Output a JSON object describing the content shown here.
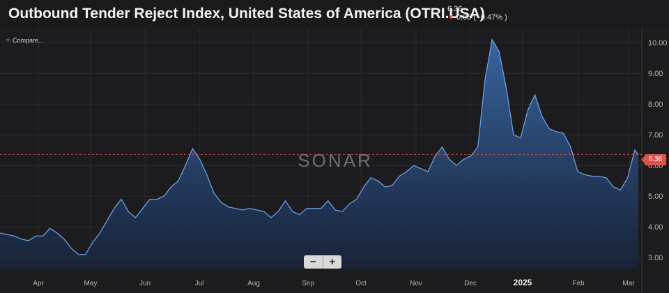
{
  "header": {
    "title": "Outbound Tender Reject Index, United States of America (OTRI.USA)",
    "last_value": "6.36",
    "change": "0.03 ( -0.47% )",
    "change_arrow": "arrow-down-icon"
  },
  "toolbar": {
    "compare_label": "Compare..."
  },
  "watermark": "SONAR",
  "zoom": {
    "minus_label": "−",
    "plus_label": "+"
  },
  "colors": {
    "background": "#1c1c1e",
    "line": "#6b9fe4",
    "fill_top": "#3a67a6",
    "fill_bottom": "#172338",
    "negative": "#e0504a",
    "gridline": "#2d2d30"
  },
  "chart_data": {
    "type": "area",
    "title": "Outbound Tender Reject Index, United States of America (OTRI.USA)",
    "xlabel": "",
    "ylabel": "",
    "ylim": [
      2.8,
      10.3
    ],
    "grid": true,
    "y_ticks": [
      "3.00",
      "4.00",
      "5.00",
      "6.00",
      "7.00",
      "8.00",
      "9.00",
      "10.00"
    ],
    "x_ticks": [
      "Apr",
      "May",
      "Jun",
      "Jul",
      "Aug",
      "Sep",
      "Oct",
      "Nov",
      "Dec",
      "2025",
      "Feb",
      "Mar"
    ],
    "last_value": 6.36,
    "series": [
      {
        "name": "OTRI.USA",
        "points": [
          [
            0,
            3.8
          ],
          [
            4,
            3.75
          ],
          [
            8,
            3.7
          ],
          [
            12,
            3.6
          ],
          [
            16,
            3.55
          ],
          [
            20,
            3.7
          ],
          [
            24,
            3.7
          ],
          [
            28,
            3.95
          ],
          [
            32,
            3.8
          ],
          [
            36,
            3.6
          ],
          [
            40,
            3.3
          ],
          [
            44,
            3.1
          ],
          [
            48,
            3.1
          ],
          [
            52,
            3.5
          ],
          [
            56,
            3.8
          ],
          [
            60,
            4.2
          ],
          [
            64,
            4.6
          ],
          [
            68,
            4.9
          ],
          [
            72,
            4.5
          ],
          [
            76,
            4.3
          ],
          [
            80,
            4.6
          ],
          [
            84,
            4.9
          ],
          [
            88,
            4.9
          ],
          [
            92,
            5.0
          ],
          [
            96,
            5.3
          ],
          [
            100,
            5.5
          ],
          [
            104,
            6.0
          ],
          [
            108,
            6.55
          ],
          [
            112,
            6.2
          ],
          [
            116,
            5.7
          ],
          [
            120,
            5.1
          ],
          [
            124,
            4.8
          ],
          [
            128,
            4.65
          ],
          [
            132,
            4.6
          ],
          [
            136,
            4.55
          ],
          [
            140,
            4.6
          ],
          [
            144,
            4.55
          ],
          [
            148,
            4.5
          ],
          [
            152,
            4.3
          ],
          [
            156,
            4.5
          ],
          [
            160,
            4.85
          ],
          [
            164,
            4.5
          ],
          [
            168,
            4.4
          ],
          [
            172,
            4.6
          ],
          [
            176,
            4.6
          ],
          [
            180,
            4.6
          ],
          [
            184,
            4.85
          ],
          [
            188,
            4.55
          ],
          [
            192,
            4.5
          ],
          [
            196,
            4.75
          ],
          [
            200,
            4.9
          ],
          [
            204,
            5.3
          ],
          [
            208,
            5.6
          ],
          [
            212,
            5.5
          ],
          [
            216,
            5.3
          ],
          [
            220,
            5.35
          ],
          [
            224,
            5.65
          ],
          [
            228,
            5.8
          ],
          [
            232,
            6.0
          ],
          [
            236,
            5.9
          ],
          [
            240,
            5.8
          ],
          [
            244,
            6.3
          ],
          [
            248,
            6.6
          ],
          [
            252,
            6.2
          ],
          [
            256,
            6.0
          ],
          [
            260,
            6.2
          ],
          [
            264,
            6.3
          ],
          [
            268,
            6.6
          ],
          [
            272,
            8.8
          ],
          [
            276,
            10.1
          ],
          [
            280,
            9.7
          ],
          [
            284,
            8.5
          ],
          [
            288,
            7.0
          ],
          [
            292,
            6.9
          ],
          [
            296,
            7.8
          ],
          [
            300,
            8.3
          ],
          [
            304,
            7.6
          ],
          [
            308,
            7.2
          ],
          [
            312,
            7.1
          ],
          [
            316,
            7.05
          ],
          [
            320,
            6.6
          ],
          [
            324,
            5.8
          ],
          [
            328,
            5.7
          ],
          [
            332,
            5.65
          ],
          [
            336,
            5.65
          ],
          [
            340,
            5.6
          ],
          [
            344,
            5.3
          ],
          [
            348,
            5.2
          ],
          [
            352,
            5.6
          ],
          [
            356,
            6.5
          ],
          [
            358,
            6.36
          ]
        ]
      }
    ]
  }
}
